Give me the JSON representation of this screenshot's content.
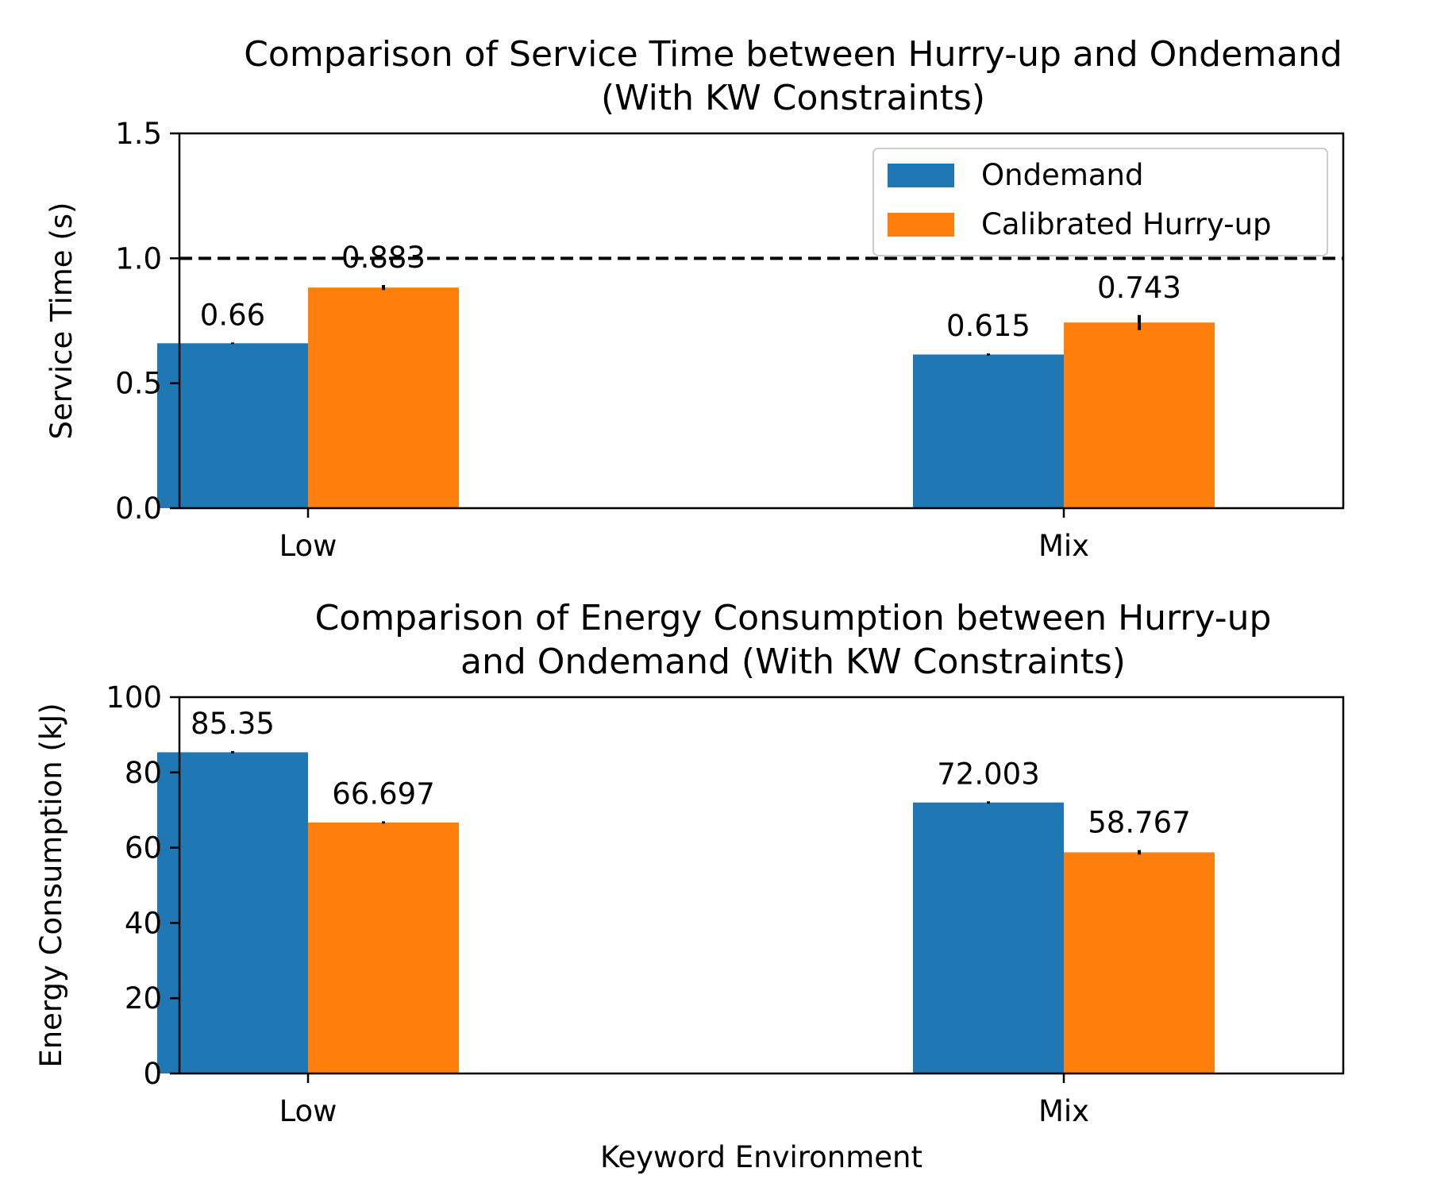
{
  "colors": {
    "ondemand": "#1f77b4",
    "hurry_up": "#ff7f0e",
    "reference_line": "#000000"
  },
  "chart_data": [
    {
      "type": "bar",
      "title": [
        "Comparison of Service Time between Hurry-up and Ondemand",
        "(With KW Constraints)"
      ],
      "xlabel": "",
      "ylabel": "Service Time (s)",
      "ylim": [
        0,
        1.5
      ],
      "yticks": [
        0.0,
        0.5,
        1.0,
        1.5
      ],
      "ytick_labels": [
        "0.0",
        "0.5",
        "1.0",
        "1.5"
      ],
      "categories": [
        "Low",
        "Mix"
      ],
      "series": [
        {
          "name": "Ondemand",
          "values": [
            0.66,
            0.615
          ],
          "errors": [
            0.003,
            0.004
          ],
          "labels": [
            "0.66",
            "0.615"
          ]
        },
        {
          "name": "Calibrated Hurry-up",
          "values": [
            0.883,
            0.743
          ],
          "errors": [
            0.01,
            0.03
          ],
          "labels": [
            "0.883",
            "0.743"
          ]
        }
      ],
      "reference_line": {
        "y": 1.0,
        "style": "dashed"
      },
      "legend": "top-right",
      "grid": false
    },
    {
      "type": "bar",
      "title": [
        "Comparison of Energy Consumption between Hurry-up",
        "and Ondemand (With KW Constraints)"
      ],
      "xlabel": "Keyword Environment",
      "ylabel": "Energy Consumption (kJ)",
      "ylim": [
        0,
        100
      ],
      "yticks": [
        0,
        20,
        40,
        60,
        80,
        100
      ],
      "ytick_labels": [
        "0",
        "20",
        "40",
        "60",
        "80",
        "100"
      ],
      "categories": [
        "Low",
        "Mix"
      ],
      "series": [
        {
          "name": "Ondemand",
          "values": [
            85.35,
            72.003
          ],
          "errors": [
            0.3,
            0.3
          ],
          "labels": [
            "85.35",
            "72.003"
          ]
        },
        {
          "name": "Calibrated Hurry-up",
          "values": [
            66.697,
            58.767
          ],
          "errors": [
            0.3,
            0.6
          ],
          "labels": [
            "66.697",
            "58.767"
          ]
        }
      ],
      "legend": "none",
      "grid": false
    }
  ]
}
